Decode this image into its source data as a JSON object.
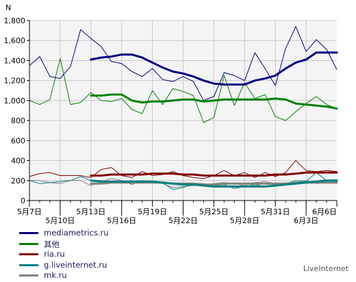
{
  "chart_data": {
    "type": "line",
    "ylabel": "N",
    "ylim": [
      0,
      1800
    ],
    "y_ticks": [
      "0",
      "200",
      "400",
      "600",
      "800",
      "1,000",
      "1,200",
      "1,400",
      "1,600",
      "1,800"
    ],
    "x_tick_labels": [
      {
        "i": 0,
        "label": "5月7日",
        "row": 0
      },
      {
        "i": 3,
        "label": "5月10日",
        "row": 1
      },
      {
        "i": 6,
        "label": "5月13日",
        "row": 0
      },
      {
        "i": 9,
        "label": "5月16日",
        "row": 1
      },
      {
        "i": 12,
        "label": "5月19日",
        "row": 0
      },
      {
        "i": 15,
        "label": "5月22日",
        "row": 1
      },
      {
        "i": 18,
        "label": "5月25日",
        "row": 0
      },
      {
        "i": 21,
        "label": "5月28日",
        "row": 1
      },
      {
        "i": 24,
        "label": "5月31日",
        "row": 0
      },
      {
        "i": 27,
        "label": "6月3日",
        "row": 1
      },
      {
        "i": 30,
        "label": "6月6日",
        "row": 0
      }
    ],
    "grid": true,
    "series": [
      {
        "name": "mediametrics.ru",
        "color": "#000080",
        "daily": [
          1350,
          1440,
          1240,
          1220,
          1340,
          1710,
          1620,
          1540,
          1390,
          1370,
          1290,
          1240,
          1320,
          1210,
          1190,
          1240,
          1190,
          1000,
          1040,
          1280,
          1250,
          1200,
          1480,
          1320,
          1150,
          1520,
          1740,
          1490,
          1610,
          1510,
          1310
        ],
        "average": [
          null,
          null,
          null,
          null,
          null,
          null,
          1410,
          1430,
          1440,
          1460,
          1460,
          1430,
          1380,
          1330,
          1290,
          1270,
          1240,
          1200,
          1170,
          1160,
          1160,
          1160,
          1200,
          1220,
          1250,
          1320,
          1380,
          1410,
          1480,
          1480,
          1480
        ]
      },
      {
        "name": "其他",
        "color": "#008000",
        "daily": [
          1000,
          960,
          1010,
          1420,
          960,
          980,
          1080,
          1000,
          990,
          1020,
          910,
          870,
          1100,
          960,
          1120,
          1090,
          1050,
          780,
          830,
          1250,
          950,
          1180,
          1020,
          1060,
          840,
          800,
          890,
          970,
          1040,
          960,
          920
        ],
        "average": [
          null,
          null,
          null,
          null,
          null,
          null,
          1050,
          1050,
          1060,
          1060,
          1000,
          980,
          990,
          990,
          1000,
          1010,
          1010,
          990,
          1000,
          1010,
          1010,
          1010,
          1010,
          1010,
          1020,
          1010,
          970,
          960,
          950,
          940,
          920
        ]
      },
      {
        "name": "ria.ru",
        "color": "#800000",
        "daily": [
          240,
          270,
          280,
          250,
          250,
          250,
          230,
          310,
          330,
          250,
          230,
          290,
          250,
          260,
          290,
          250,
          230,
          220,
          250,
          300,
          250,
          280,
          230,
          280,
          240,
          280,
          400,
          300,
          290,
          300,
          290
        ],
        "average": [
          null,
          null,
          null,
          null,
          null,
          null,
          250,
          250,
          260,
          260,
          260,
          260,
          270,
          270,
          270,
          260,
          260,
          250,
          250,
          250,
          250,
          250,
          250,
          250,
          260,
          260,
          270,
          280,
          280,
          280,
          280
        ]
      },
      {
        "name": "g.liveinternet.ru",
        "color": "#008080",
        "daily": [
          200,
          170,
          180,
          190,
          200,
          240,
          200,
          200,
          180,
          190,
          170,
          200,
          190,
          180,
          110,
          130,
          170,
          170,
          150,
          160,
          120,
          140,
          160,
          140,
          160,
          170,
          200,
          190,
          280,
          200,
          210
        ],
        "average": [
          null,
          null,
          null,
          null,
          null,
          null,
          200,
          190,
          190,
          190,
          190,
          190,
          190,
          180,
          170,
          160,
          160,
          150,
          140,
          140,
          140,
          140,
          140,
          140,
          150,
          160,
          170,
          180,
          190,
          200,
          200
        ]
      },
      {
        "name": "mk.ru",
        "color": "#808080",
        "daily": [
          200,
          200,
          180,
          170,
          200,
          200,
          150,
          190,
          220,
          200,
          160,
          200,
          180,
          170,
          130,
          140,
          150,
          160,
          170,
          180,
          170,
          150,
          180,
          190,
          170,
          160,
          180,
          200,
          170,
          180,
          190
        ],
        "average": [
          null,
          null,
          null,
          null,
          null,
          null,
          170,
          170,
          180,
          180,
          180,
          180,
          180,
          180,
          170,
          170,
          170,
          160,
          160,
          170,
          170,
          170,
          170,
          170,
          170,
          170,
          180,
          180,
          180,
          180,
          180
        ]
      }
    ]
  },
  "watermark": "LiveInternet"
}
